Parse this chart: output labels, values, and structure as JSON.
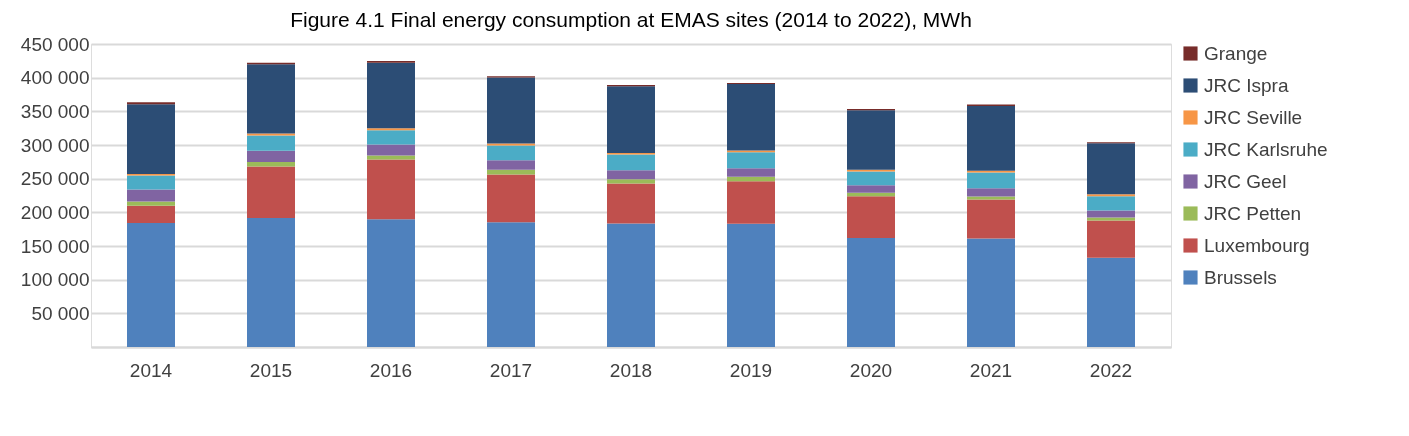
{
  "chart_data": {
    "type": "bar",
    "title": "Figure 4.1 Final energy consumption at EMAS sites (2014 to 2022), MWh",
    "categories": [
      "2014",
      "2015",
      "2016",
      "2017",
      "2018",
      "2019",
      "2020",
      "2021",
      "2022"
    ],
    "stacked": true,
    "legend": "right",
    "grid": "y",
    "ylim": [
      0,
      450000
    ],
    "yticks": [
      {
        "value": 0,
        "label": null
      },
      {
        "value": 50000,
        "label": "50 000"
      },
      {
        "value": 100000,
        "label": "100 000"
      },
      {
        "value": 150000,
        "label": "150 000"
      },
      {
        "value": 200000,
        "label": "200 000"
      },
      {
        "value": 250000,
        "label": "250 000"
      },
      {
        "value": 300000,
        "label": "300 000"
      },
      {
        "value": 350000,
        "label": "350 000"
      },
      {
        "value": 400000,
        "label": "400 000"
      },
      {
        "value": 450000,
        "label": "450 000"
      }
    ],
    "series": [
      {
        "name": "Brussels",
        "color": "#4f81bd",
        "values": [
          184000,
          191400,
          189900,
          185400,
          183500,
          183000,
          161700,
          161200,
          132500
        ]
      },
      {
        "name": "Luxembourg",
        "color": "#c0504d",
        "values": [
          25700,
          76600,
          88500,
          70800,
          59300,
          63300,
          62300,
          57900,
          55400
        ]
      },
      {
        "name": "JRC Petten",
        "color": "#9bbb59",
        "values": [
          6400,
          6900,
          5900,
          6900,
          6400,
          6400,
          5000,
          4400,
          4500
        ]
      },
      {
        "name": "JRC Geel",
        "color": "#8064a2",
        "values": [
          17800,
          16400,
          16400,
          14300,
          13400,
          12900,
          11300,
          12400,
          10300
        ]
      },
      {
        "name": "JRC Karlsruhe",
        "color": "#4bacc6",
        "values": [
          20800,
          22700,
          21200,
          21800,
          23200,
          23700,
          20300,
          23200,
          21300
        ]
      },
      {
        "name": "JRC Seville",
        "color": "#f79646",
        "values": [
          2400,
          3000,
          3000,
          2900,
          2500,
          2500,
          2500,
          2500,
          3000
        ]
      },
      {
        "name": "JRC Ispra",
        "color": "#2c4d75",
        "values": [
          103400,
          102800,
          97400,
          98000,
          98900,
          98900,
          88500,
          96400,
          75600
        ]
      },
      {
        "name": "Grange",
        "color": "#772c2a",
        "values": [
          3000,
          2500,
          2500,
          1900,
          2000,
          1400,
          2000,
          2000,
          1500
        ]
      }
    ]
  }
}
